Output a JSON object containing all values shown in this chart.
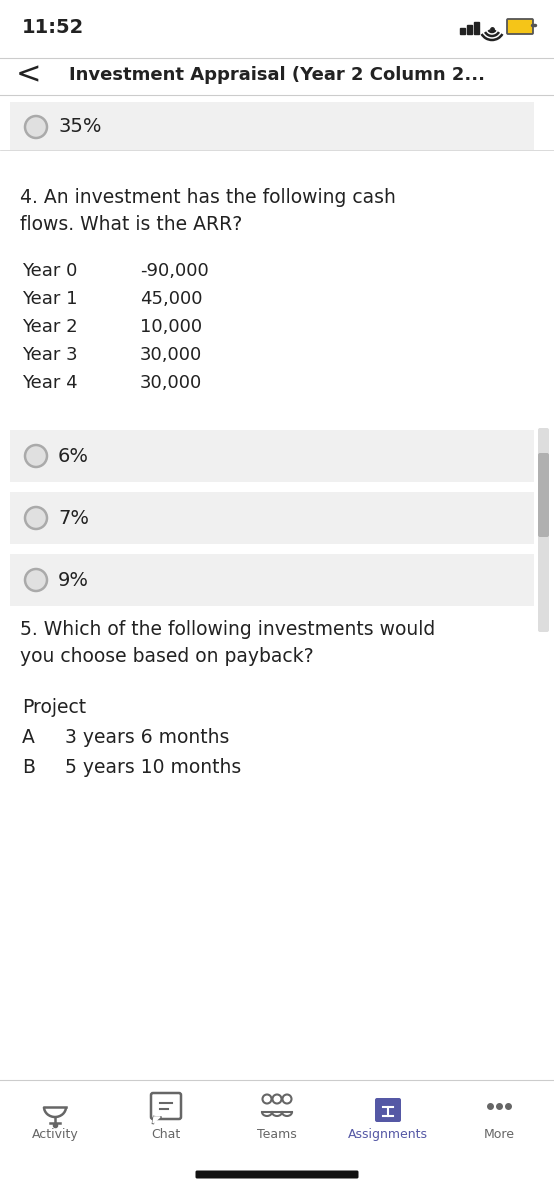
{
  "time": "11:52",
  "title": "Investment Appraisal (Year 2 Column 2...",
  "bg_color": "#ffffff",
  "option_bg": "#f0f0f0",
  "prev_answer": "35%",
  "question4_line1": "4. An investment has the following cash",
  "question4_line2": "flows. What is the ARR?",
  "cash_flows": [
    [
      "Year 0",
      "-90,000"
    ],
    [
      "Year 1",
      "45,000"
    ],
    [
      "Year 2",
      "10,000"
    ],
    [
      "Year 3",
      "30,000"
    ],
    [
      "Year 4",
      "30,000"
    ]
  ],
  "options_q4": [
    "6%",
    "7%",
    "9%"
  ],
  "question5_line1": "5. Which of the following investments would",
  "question5_line2": "you choose based on payback?",
  "table_header": "Project",
  "table_rows": [
    [
      "A",
      "3 years 6 months"
    ],
    [
      "B",
      "5 years 10 months"
    ]
  ],
  "nav_items": [
    "Activity",
    "Chat",
    "Teams",
    "Assignments",
    "More"
  ],
  "assignments_color": "#5558a5",
  "icon_color": "#666666",
  "scrollbar_color": "#b0b0b0",
  "text_color": "#222222",
  "divider_color": "#cccccc",
  "radio_edge": "#aaaaaa",
  "radio_fill": "#e0e0e0"
}
